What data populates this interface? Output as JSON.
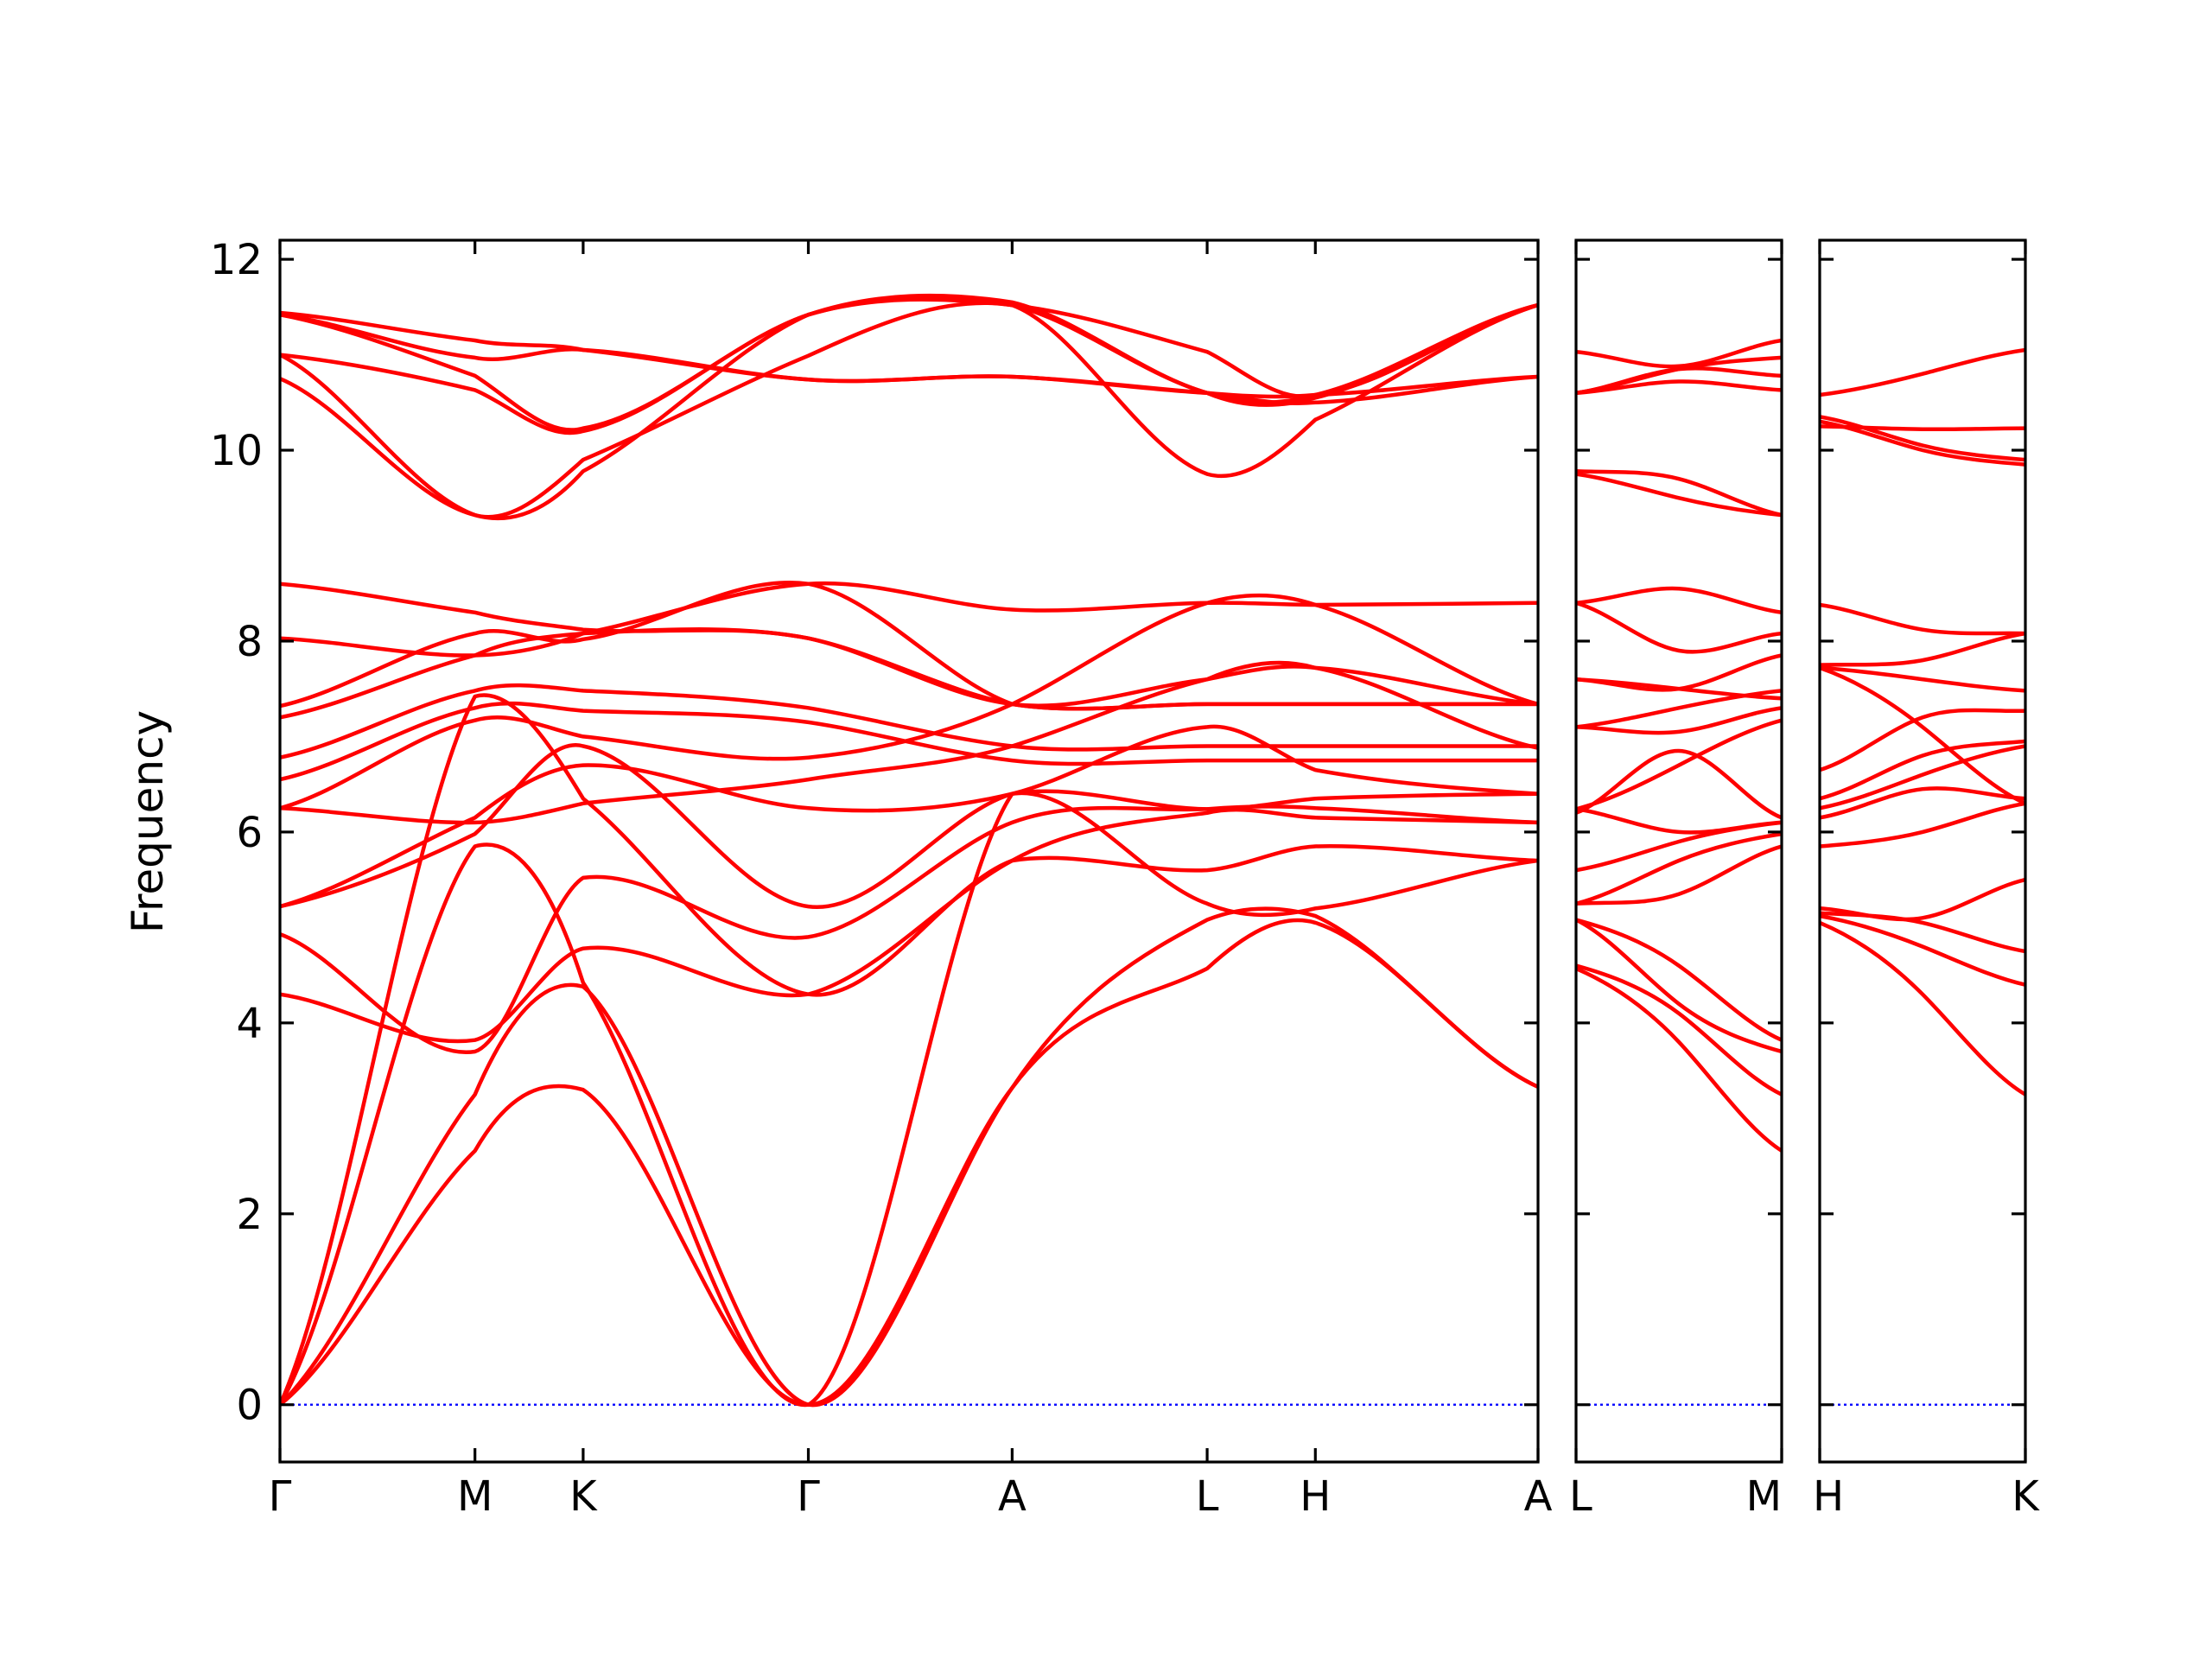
{
  "chart_data": {
    "type": "line",
    "title": "",
    "ylabel": "Frequency",
    "xlabel": "",
    "ylim": [
      -0.6,
      12.2
    ],
    "yticks": [
      0,
      2,
      4,
      6,
      8,
      10,
      12
    ],
    "grid": false,
    "colors": {
      "bands": "#ff0000",
      "zero_line": "#0000ff",
      "axes": "#000000"
    },
    "panels": [
      {
        "id": "panel1",
        "ticks": [
          {
            "label": "Γ",
            "x": 0
          },
          {
            "label": "M",
            "x": 0.155
          },
          {
            "label": "K",
            "x": 0.241
          },
          {
            "label": "Γ",
            "x": 0.42
          },
          {
            "label": "A",
            "x": 0.582
          },
          {
            "label": "L",
            "x": 0.737
          },
          {
            "label": "H",
            "x": 0.823
          },
          {
            "label": "A",
            "x": 1.0
          }
        ],
        "bands": [
          {
            "x": [
              0,
              0.155,
              0.241,
              0.42,
              0.582,
              0.737,
              0.823,
              1.0
            ],
            "y": [
              0,
              2.66,
              3.3,
              0,
              3.32,
              4.57,
              5.05,
              3.33
            ]
          },
          {
            "x": [
              0,
              0.155,
              0.241,
              0.42,
              0.582,
              0.737,
              0.823,
              1.0
            ],
            "y": [
              0,
              3.25,
              4.38,
              0,
              3.32,
              5.08,
              5.12,
              3.33
            ]
          },
          {
            "x": [
              0,
              0.155,
              0.241,
              0.42,
              0.582,
              0.737,
              0.823,
              1.0
            ],
            "y": [
              0,
              5.85,
              4.42,
              0,
              6.4,
              5.25,
              5.2,
              5.7
            ]
          },
          {
            "x": [
              0,
              0.155,
              0.241,
              0.42,
              0.582,
              0.737,
              0.823,
              1.0
            ],
            "y": [
              0,
              7.42,
              6.35,
              4.3,
              5.7,
              5.6,
              5.85,
              5.7
            ]
          },
          {
            "x": [
              0,
              0.155,
              0.241,
              0.42,
              0.582,
              0.737,
              0.823,
              1.0
            ],
            "y": [
              4.3,
              3.82,
              4.78,
              4.3,
              5.7,
              6.2,
              6.15,
              6.1
            ]
          },
          {
            "x": [
              0,
              0.155,
              0.241,
              0.42,
              0.582,
              0.737,
              0.823,
              1.0
            ],
            "y": [
              4.93,
              3.7,
              5.52,
              4.9,
              6.1,
              6.24,
              6.25,
              6.1
            ]
          },
          {
            "x": [
              0,
              0.155,
              0.241,
              0.42,
              0.582,
              0.737,
              0.823,
              1.0
            ],
            "y": [
              5.22,
              5.98,
              6.9,
              5.22,
              6.4,
              6.24,
              6.35,
              6.4
            ]
          },
          {
            "x": [
              0,
              0.155,
              0.241,
              0.42,
              0.582,
              0.737,
              0.823,
              1.0
            ],
            "y": [
              5.22,
              6.15,
              6.7,
              6.25,
              6.4,
              7.1,
              6.65,
              6.4
            ]
          },
          {
            "x": [
              0,
              0.155,
              0.241,
              0.42,
              0.582,
              0.737,
              0.823,
              1.0
            ],
            "y": [
              6.25,
              6.1,
              6.3,
              6.55,
              6.9,
              7.6,
              7.72,
              6.88
            ]
          },
          {
            "x": [
              0,
              0.155,
              0.241,
              0.42,
              0.582,
              0.737,
              0.823,
              1.0
            ],
            "y": [
              6.25,
              7.17,
              7.0,
              6.78,
              7.34,
              8.4,
              8.38,
              7.34
            ]
          },
          {
            "x": [
              0,
              0.155,
              0.241,
              0.42,
              0.582,
              0.737,
              0.823,
              1.0
            ],
            "y": [
              6.55,
              7.3,
              7.27,
              7.15,
              6.75,
              6.75,
              6.75,
              6.75
            ]
          },
          {
            "x": [
              0,
              0.155,
              0.241,
              0.42,
              0.582,
              0.737,
              0.823,
              1.0
            ],
            "y": [
              6.78,
              7.48,
              7.48,
              7.3,
              6.9,
              6.9,
              6.9,
              6.9
            ]
          },
          {
            "x": [
              0,
              0.155,
              0.241,
              0.42,
              0.582,
              0.737,
              0.823,
              1.0
            ],
            "y": [
              7.2,
              7.85,
              8.08,
              8.03,
              7.34,
              7.34,
              7.34,
              7.34
            ]
          },
          {
            "x": [
              0,
              0.155,
              0.241,
              0.42,
              0.582,
              0.737,
              0.823,
              1.0
            ],
            "y": [
              7.32,
              8.08,
              8.02,
              8.6,
              7.34,
              7.34,
              7.34,
              7.34
            ]
          },
          {
            "x": [
              0,
              0.155,
              0.241,
              0.42,
              0.582,
              0.737,
              0.823,
              1.0
            ],
            "y": [
              8.03,
              7.85,
              8.08,
              8.6,
              8.33,
              8.4,
              8.38,
              8.4
            ]
          },
          {
            "x": [
              0,
              0.155,
              0.241,
              0.42,
              0.582,
              0.737,
              0.823,
              1.0
            ],
            "y": [
              8.6,
              8.3,
              8.12,
              8.03,
              7.34,
              7.6,
              7.72,
              7.34
            ]
          },
          {
            "x": [
              0,
              0.155,
              0.241,
              0.42,
              0.582,
              0.737,
              0.823,
              1.0
            ],
            "y": [
              10.75,
              9.32,
              9.9,
              10.99,
              11.52,
              9.75,
              10.32,
              11.52
            ]
          },
          {
            "x": [
              0,
              0.155,
              0.241,
              0.42,
              0.582,
              0.737,
              0.823,
              1.0
            ],
            "y": [
              11.0,
              9.32,
              9.78,
              11.42,
              11.52,
              10.6,
              10.55,
              11.52
            ]
          },
          {
            "x": [
              0,
              0.155,
              0.241,
              0.42,
              0.582,
              0.737,
              0.823,
              1.0
            ],
            "y": [
              11.0,
              10.63,
              10.2,
              11.42,
              11.52,
              11.03,
              10.58,
              11.52
            ]
          },
          {
            "x": [
              0,
              0.155,
              0.241,
              0.42,
              0.582,
              0.737,
              0.823,
              1.0
            ],
            "y": [
              11.42,
              10.78,
              10.23,
              11.42,
              11.55,
              10.6,
              10.58,
              11.52
            ]
          },
          {
            "x": [
              0,
              0.155,
              0.241,
              0.42,
              0.582,
              0.737,
              0.823,
              1.0
            ],
            "y": [
              11.42,
              10.97,
              11.05,
              10.74,
              10.77,
              10.6,
              10.5,
              10.77
            ]
          },
          {
            "x": [
              0,
              0.155,
              0.241,
              0.42,
              0.582,
              0.737,
              0.823,
              1.0
            ],
            "y": [
              11.44,
              11.15,
              11.05,
              10.74,
              10.77,
              10.6,
              10.58,
              10.77
            ]
          }
        ]
      },
      {
        "id": "panel2",
        "ticks": [
          {
            "label": "L",
            "x": 0
          },
          {
            "label": "M",
            "x": 1.0
          }
        ],
        "bands": [
          {
            "x": [
              0,
              0.5,
              1
            ],
            "y": [
              4.57,
              3.8,
              2.66
            ]
          },
          {
            "x": [
              0,
              0.5,
              1
            ],
            "y": [
              4.6,
              4.1,
              3.25
            ]
          },
          {
            "x": [
              0,
              0.5,
              1
            ],
            "y": [
              5.08,
              4.2,
              3.7
            ]
          },
          {
            "x": [
              0,
              0.5,
              1
            ],
            "y": [
              5.08,
              4.6,
              3.82
            ]
          },
          {
            "x": [
              0,
              0.5,
              1
            ],
            "y": [
              5.25,
              5.35,
              5.85
            ]
          },
          {
            "x": [
              0,
              0.5,
              1
            ],
            "y": [
              5.25,
              5.7,
              5.98
            ]
          },
          {
            "x": [
              0,
              0.5,
              1
            ],
            "y": [
              5.6,
              5.9,
              6.1
            ]
          },
          {
            "x": [
              0,
              0.5,
              1
            ],
            "y": [
              6.2,
              6.85,
              6.15
            ]
          },
          {
            "x": [
              0,
              0.5,
              1
            ],
            "y": [
              6.24,
              6.0,
              6.1
            ]
          },
          {
            "x": [
              0,
              0.5,
              1
            ],
            "y": [
              6.24,
              6.7,
              7.17
            ]
          },
          {
            "x": [
              0,
              0.5,
              1
            ],
            "y": [
              7.1,
              7.05,
              7.3
            ]
          },
          {
            "x": [
              0,
              0.5,
              1
            ],
            "y": [
              7.1,
              7.3,
              7.48
            ]
          },
          {
            "x": [
              0,
              0.5,
              1
            ],
            "y": [
              7.6,
              7.5,
              7.4
            ]
          },
          {
            "x": [
              0,
              0.5,
              1
            ],
            "y": [
              7.6,
              7.5,
              7.85
            ]
          },
          {
            "x": [
              0,
              0.5,
              1
            ],
            "y": [
              8.4,
              7.9,
              8.08
            ]
          },
          {
            "x": [
              0,
              0.5,
              1
            ],
            "y": [
              8.4,
              8.55,
              8.3
            ]
          },
          {
            "x": [
              0,
              0.5,
              1
            ],
            "y": [
              9.75,
              9.5,
              9.32
            ]
          },
          {
            "x": [
              0,
              0.5,
              1
            ],
            "y": [
              9.78,
              9.7,
              9.32
            ]
          },
          {
            "x": [
              0,
              0.5,
              1
            ],
            "y": [
              10.6,
              10.72,
              10.63
            ]
          },
          {
            "x": [
              0,
              0.5,
              1
            ],
            "y": [
              10.6,
              10.85,
              10.78
            ]
          },
          {
            "x": [
              0,
              0.5,
              1
            ],
            "y": [
              10.6,
              10.85,
              10.97
            ]
          },
          {
            "x": [
              0,
              0.5,
              1
            ],
            "y": [
              11.03,
              10.88,
              11.15
            ]
          }
        ]
      },
      {
        "id": "panel3",
        "ticks": [
          {
            "label": "H",
            "x": 0
          },
          {
            "label": "K",
            "x": 1.0
          }
        ],
        "bands": [
          {
            "x": [
              0,
              0.5,
              1
            ],
            "y": [
              5.05,
              4.3,
              3.25
            ]
          },
          {
            "x": [
              0,
              0.5,
              1
            ],
            "y": [
              5.12,
              4.8,
              4.4
            ]
          },
          {
            "x": [
              0,
              0.5,
              1
            ],
            "y": [
              5.15,
              5.05,
              4.75
            ]
          },
          {
            "x": [
              0,
              0.5,
              1
            ],
            "y": [
              5.2,
              5.1,
              5.5
            ]
          },
          {
            "x": [
              0,
              0.5,
              1
            ],
            "y": [
              5.85,
              6.0,
              6.3
            ]
          },
          {
            "x": [
              0,
              0.5,
              1
            ],
            "y": [
              6.15,
              6.45,
              6.35
            ]
          },
          {
            "x": [
              0,
              0.5,
              1
            ],
            "y": [
              6.25,
              6.6,
              6.9
            ]
          },
          {
            "x": [
              0,
              0.5,
              1
            ],
            "y": [
              6.35,
              6.8,
              6.95
            ]
          },
          {
            "x": [
              0,
              0.5,
              1
            ],
            "y": [
              6.65,
              7.2,
              7.27
            ]
          },
          {
            "x": [
              0,
              0.5,
              1
            ],
            "y": [
              7.72,
              7.1,
              6.3
            ]
          },
          {
            "x": [
              0,
              0.5,
              1
            ],
            "y": [
              7.72,
              7.6,
              7.48
            ]
          },
          {
            "x": [
              0,
              0.5,
              1
            ],
            "y": [
              7.75,
              7.8,
              8.08
            ]
          },
          {
            "x": [
              0,
              0.5,
              1
            ],
            "y": [
              8.38,
              8.12,
              8.08
            ]
          },
          {
            "x": [
              0,
              0.5,
              1
            ],
            "y": [
              10.3,
              10.0,
              9.85
            ]
          },
          {
            "x": [
              0,
              0.5,
              1
            ],
            "y": [
              10.35,
              10.05,
              9.9
            ]
          },
          {
            "x": [
              0,
              0.5,
              1
            ],
            "y": [
              10.25,
              10.22,
              10.23
            ]
          },
          {
            "x": [
              0,
              0.5,
              1
            ],
            "y": [
              10.58,
              10.8,
              11.05
            ]
          }
        ]
      }
    ]
  }
}
